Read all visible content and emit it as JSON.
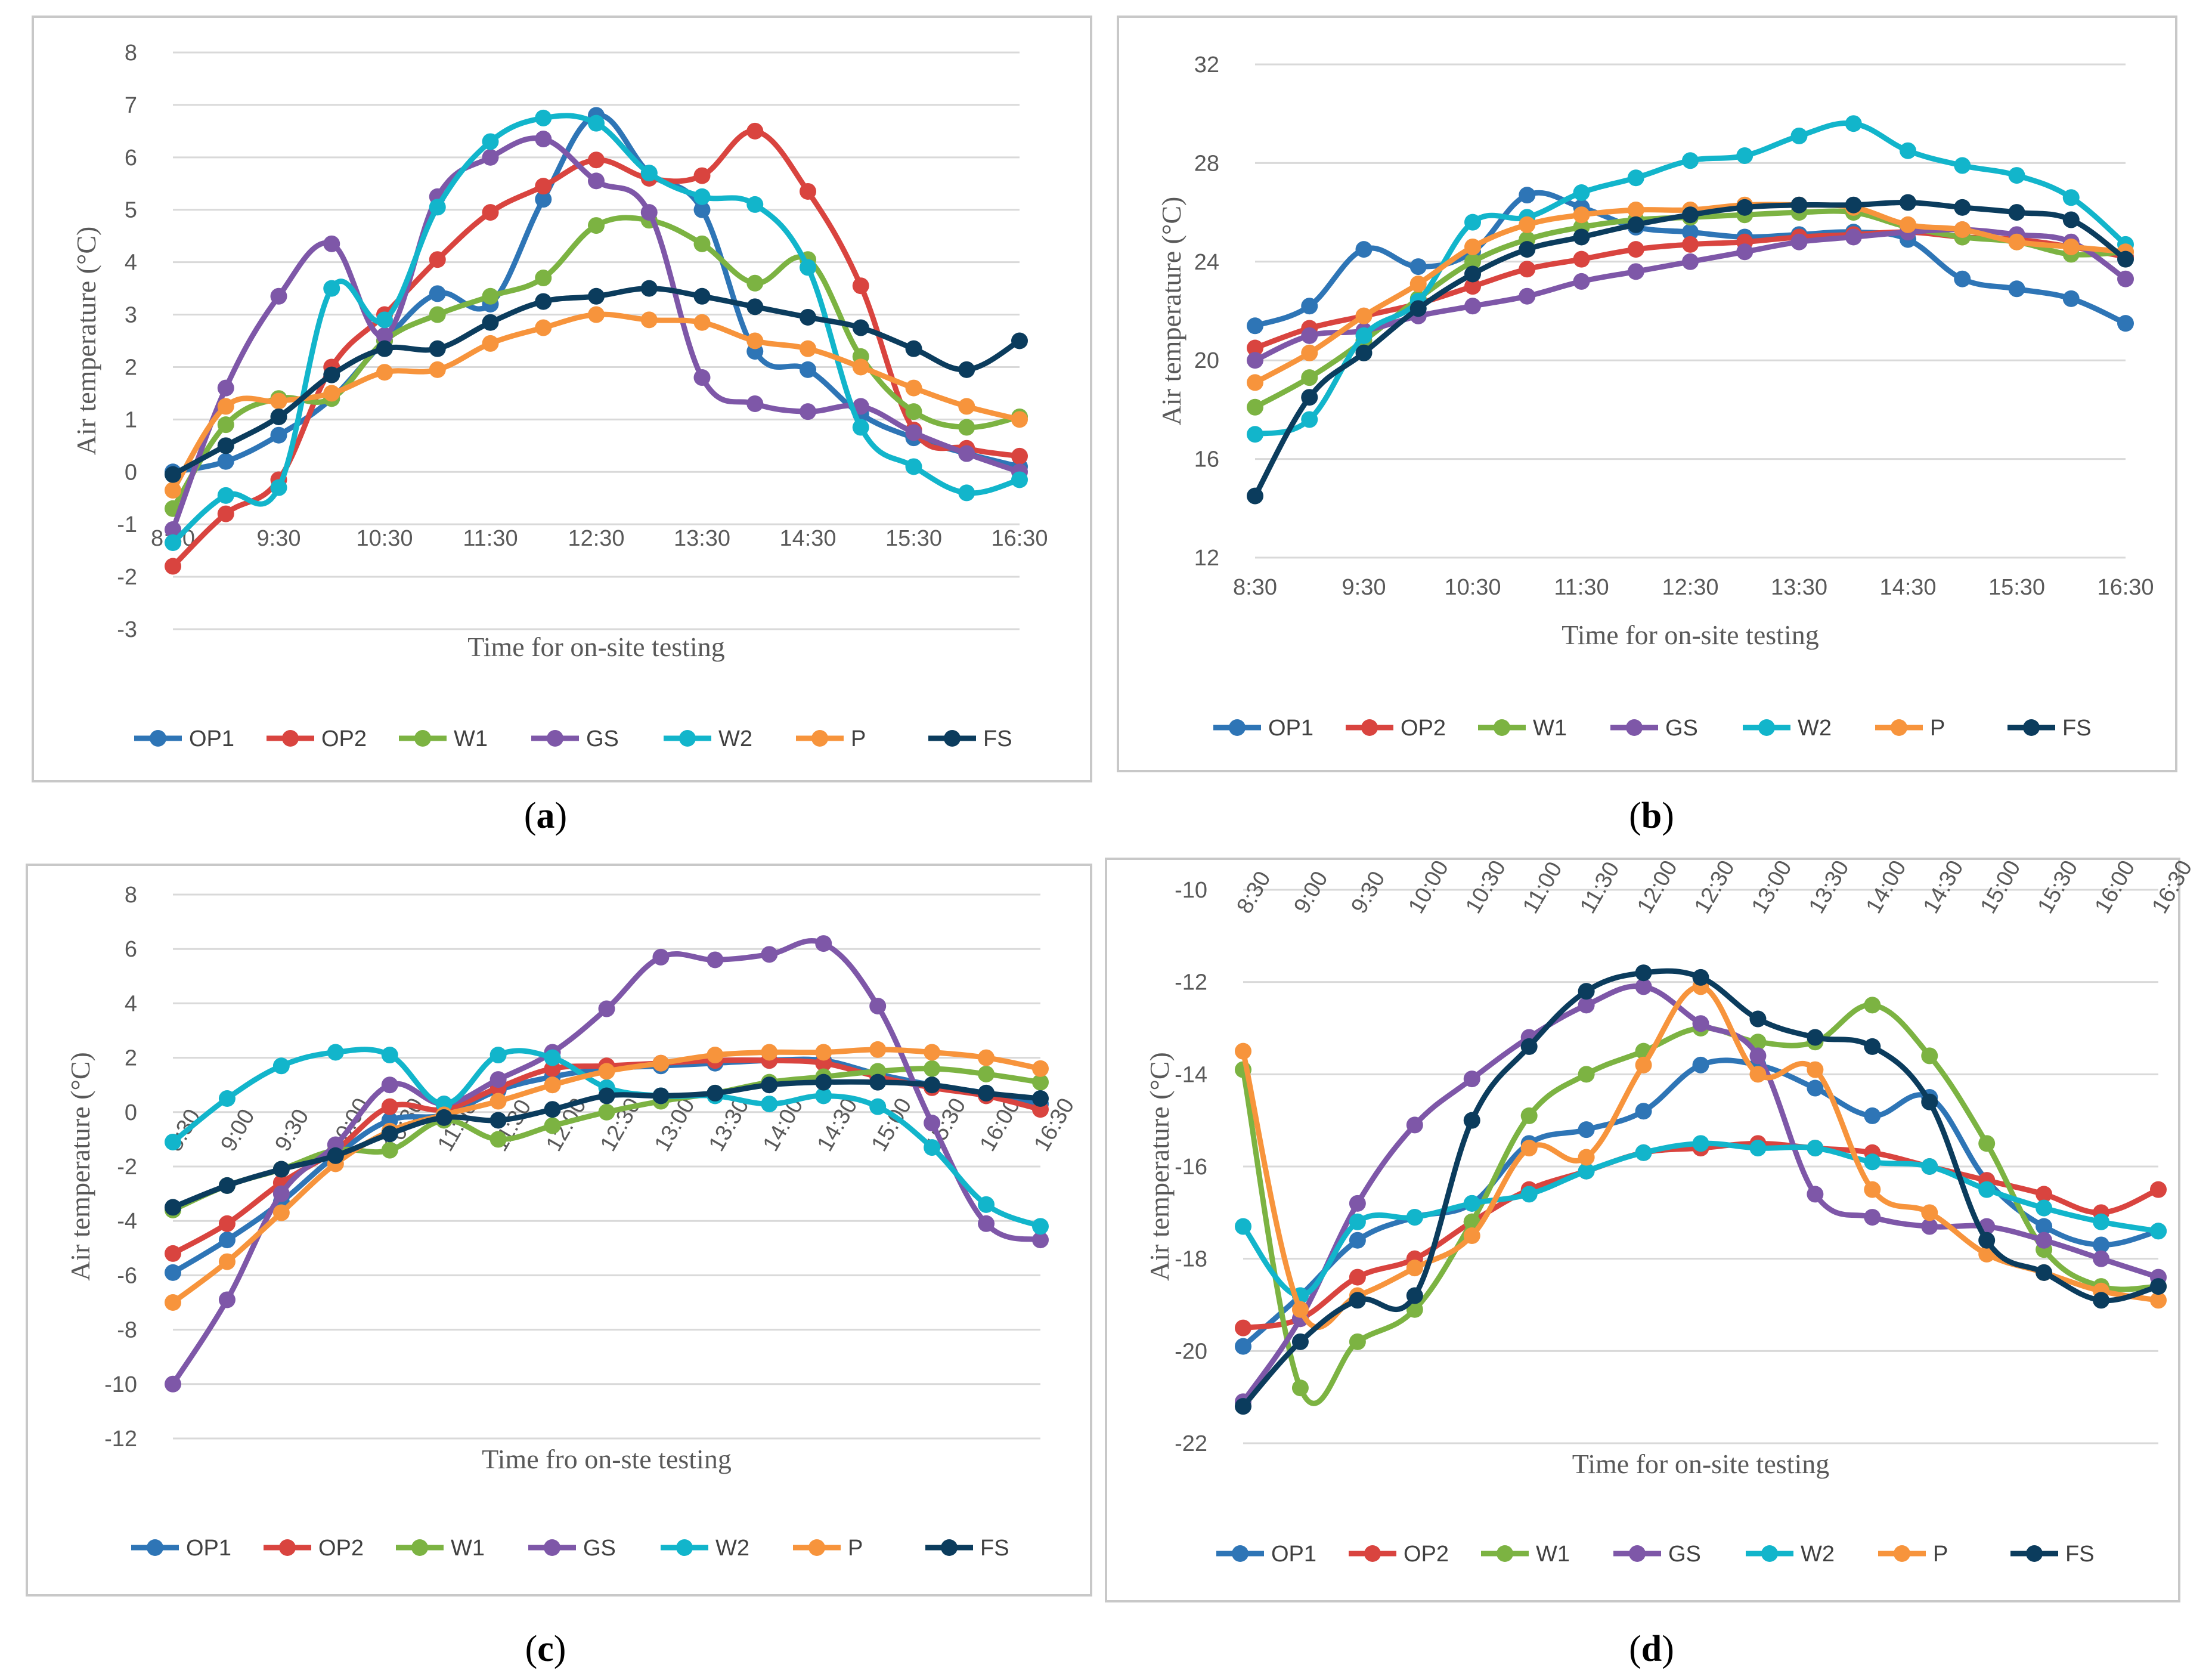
{
  "colors": {
    "OP1": "#2E75B6",
    "OP2": "#D9443F",
    "W1": "#7CB342",
    "GS": "#7E57A8",
    "W2": "#12B5CB",
    "P": "#F7943C",
    "FS": "#0B3C5D",
    "grid": "#d9d9d9",
    "frame": "#c8c8c8"
  },
  "legend": [
    "OP1",
    "OP2",
    "W1",
    "GS",
    "W2",
    "P",
    "FS"
  ],
  "chart_data": [
    {
      "id": "a",
      "type": "line",
      "caption": "(a)",
      "caption_letter": "a",
      "ylabel": "Air temperature (°C)",
      "xlabel": "Time for on-site testing",
      "ylim": [
        -3,
        8
      ],
      "yticks": [
        "-3",
        "-2",
        "-1",
        "0",
        "1",
        "2",
        "3",
        "4",
        "5",
        "6",
        "7",
        "8"
      ],
      "x_count": 17,
      "x_tick_labels": [
        "8:30",
        "9:30",
        "10:30",
        "11:30",
        "12:30",
        "13:30",
        "14:30",
        "15:30",
        "16:30"
      ],
      "x_tick_indices": [
        0,
        2,
        4,
        6,
        8,
        10,
        12,
        14,
        16
      ],
      "x_label_value": -0.7,
      "x_label_rotated": false,
      "series": [
        {
          "name": "OP1",
          "values": [
            0,
            0.2,
            0.7,
            1.4,
            2.5,
            3.4,
            3.2,
            5.2,
            6.8,
            5.7,
            5.0,
            2.3,
            1.95,
            1.1,
            0.65,
            0.35,
            0.1
          ]
        },
        {
          "name": "OP2",
          "values": [
            -1.8,
            -0.8,
            -0.15,
            2.0,
            3.0,
            4.05,
            4.95,
            5.45,
            5.95,
            5.6,
            5.65,
            6.5,
            5.35,
            3.55,
            0.8,
            0.45,
            0.3
          ]
        },
        {
          "name": "W1",
          "values": [
            -0.7,
            0.9,
            1.4,
            1.4,
            2.5,
            3.0,
            3.35,
            3.7,
            4.7,
            4.8,
            4.35,
            3.6,
            4.05,
            2.2,
            1.15,
            0.85,
            1.05
          ]
        },
        {
          "name": "GS",
          "values": [
            -1.1,
            1.6,
            3.35,
            4.35,
            2.6,
            5.25,
            6.0,
            6.35,
            5.55,
            4.95,
            1.8,
            1.3,
            1.15,
            1.25,
            0.75,
            0.35,
            0.0
          ]
        },
        {
          "name": "W2",
          "values": [
            -1.35,
            -0.45,
            -0.3,
            3.5,
            2.9,
            5.05,
            6.3,
            6.75,
            6.65,
            5.7,
            5.25,
            5.1,
            3.9,
            0.85,
            0.1,
            -0.4,
            -0.15
          ]
        },
        {
          "name": "P",
          "values": [
            -0.35,
            1.25,
            1.35,
            1.5,
            1.9,
            1.95,
            2.45,
            2.75,
            3.0,
            2.9,
            2.85,
            2.5,
            2.35,
            2.0,
            1.6,
            1.25,
            1.0
          ]
        },
        {
          "name": "FS",
          "values": [
            -0.05,
            0.5,
            1.05,
            1.85,
            2.35,
            2.35,
            2.85,
            3.25,
            3.35,
            3.5,
            3.35,
            3.15,
            2.95,
            2.75,
            2.35,
            1.95,
            2.5
          ]
        }
      ]
    },
    {
      "id": "b",
      "type": "line",
      "caption": "(b)",
      "caption_letter": "b",
      "ylabel": "Air temperature (°C)",
      "xlabel": "Time for on-site testing",
      "ylim": [
        12,
        32
      ],
      "yticks": [
        "12",
        "16",
        "20",
        "24",
        "28",
        "32"
      ],
      "x_count": 17,
      "x_tick_labels": [
        "8:30",
        "9:30",
        "10:30",
        "11:30",
        "12:30",
        "13:30",
        "14:30",
        "15:30",
        "16:30"
      ],
      "x_tick_indices": [
        0,
        2,
        4,
        6,
        8,
        10,
        12,
        14,
        16
      ],
      "x_label_value": 12,
      "x_label_rotated": false,
      "series": [
        {
          "name": "OP1",
          "values": [
            21.4,
            22.2,
            24.5,
            23.8,
            24.4,
            26.7,
            26.2,
            25.4,
            25.2,
            25.0,
            25.1,
            25.2,
            24.9,
            23.3,
            22.9,
            22.5,
            21.5
          ]
        },
        {
          "name": "OP2",
          "values": [
            20.5,
            21.3,
            21.8,
            22.3,
            23.0,
            23.7,
            24.1,
            24.5,
            24.7,
            24.8,
            25.0,
            25.1,
            25.2,
            25.0,
            24.9,
            24.6,
            24.2
          ]
        },
        {
          "name": "W1",
          "values": [
            18.1,
            19.3,
            20.8,
            22.5,
            24.0,
            24.9,
            25.4,
            25.7,
            25.8,
            25.9,
            26.0,
            26.0,
            25.4,
            25.0,
            24.8,
            24.3,
            24.4
          ]
        },
        {
          "name": "GS",
          "values": [
            20.0,
            21.0,
            21.2,
            21.8,
            22.2,
            22.6,
            23.2,
            23.6,
            24.0,
            24.4,
            24.8,
            25.0,
            25.2,
            25.3,
            25.1,
            24.8,
            23.3
          ]
        },
        {
          "name": "W2",
          "values": [
            17.0,
            17.6,
            21.0,
            22.4,
            25.6,
            25.8,
            26.8,
            27.4,
            28.1,
            28.3,
            29.1,
            29.6,
            28.5,
            27.9,
            27.5,
            26.6,
            24.7
          ]
        },
        {
          "name": "P",
          "values": [
            19.1,
            20.3,
            21.8,
            23.1,
            24.6,
            25.5,
            25.9,
            26.1,
            26.1,
            26.3,
            26.3,
            26.2,
            25.5,
            25.3,
            24.8,
            24.6,
            24.4
          ]
        },
        {
          "name": "FS",
          "values": [
            14.5,
            18.5,
            20.3,
            22.1,
            23.5,
            24.5,
            25.0,
            25.5,
            25.9,
            26.2,
            26.3,
            26.3,
            26.4,
            26.2,
            26.0,
            25.7,
            24.1
          ]
        }
      ]
    },
    {
      "id": "c",
      "type": "line",
      "caption": "(c)",
      "caption_letter": "c",
      "ylabel": "Air temperature (°C)",
      "xlabel": "Time fro on-ste testing",
      "ylim": [
        -12,
        8
      ],
      "yticks": [
        "-12",
        "-10",
        "-8",
        "-6",
        "-4",
        "-2",
        "0",
        "2",
        "4",
        "6",
        "8"
      ],
      "x_count": 17,
      "x_tick_labels": [
        "8:30",
        "9:00",
        "9:30",
        "10:00",
        "10:30",
        "11:00",
        "11:30",
        "12:00",
        "12:30",
        "13:00",
        "13:30",
        "14:00",
        "14:30",
        "15:00",
        "15:30",
        "16:00",
        "16:30"
      ],
      "x_tick_indices": [
        0,
        1,
        2,
        3,
        4,
        5,
        6,
        7,
        8,
        9,
        10,
        11,
        12,
        13,
        14,
        15,
        16
      ],
      "x_label_value": -1.5,
      "x_label_rotated": true,
      "series": [
        {
          "name": "OP1",
          "values": [
            -5.9,
            -4.7,
            -3.3,
            -1.6,
            -0.3,
            -0.1,
            0.8,
            1.3,
            1.6,
            1.7,
            1.8,
            1.9,
            1.9,
            1.4,
            1.0,
            0.7,
            0.3
          ]
        },
        {
          "name": "OP2",
          "values": [
            -5.2,
            -4.1,
            -2.6,
            -1.4,
            0.2,
            0.1,
            0.9,
            1.6,
            1.7,
            1.8,
            1.9,
            1.9,
            1.8,
            1.3,
            0.9,
            0.6,
            0.1
          ]
        },
        {
          "name": "W1",
          "values": [
            -3.6,
            -2.7,
            -2.1,
            -1.4,
            -1.4,
            -0.3,
            -1.0,
            -0.5,
            0.0,
            0.4,
            0.7,
            1.1,
            1.3,
            1.5,
            1.6,
            1.4,
            1.1
          ]
        },
        {
          "name": "GS",
          "values": [
            -10.0,
            -6.9,
            -3.0,
            -1.2,
            1.0,
            0.3,
            1.2,
            2.2,
            3.8,
            5.7,
            5.6,
            5.8,
            6.2,
            3.9,
            -0.4,
            -4.1,
            -4.7
          ]
        },
        {
          "name": "W2",
          "values": [
            -1.1,
            0.5,
            1.7,
            2.2,
            2.1,
            0.3,
            2.1,
            2.0,
            0.9,
            0.6,
            0.6,
            0.3,
            0.6,
            0.2,
            -1.3,
            -3.4,
            -4.2
          ]
        },
        {
          "name": "P",
          "values": [
            -7.0,
            -5.5,
            -3.7,
            -1.9,
            -0.7,
            -0.1,
            0.4,
            1.0,
            1.5,
            1.8,
            2.1,
            2.2,
            2.2,
            2.3,
            2.2,
            2.0,
            1.6
          ]
        },
        {
          "name": "FS",
          "values": [
            -3.5,
            -2.7,
            -2.1,
            -1.6,
            -0.8,
            -0.2,
            -0.3,
            0.1,
            0.6,
            0.6,
            0.7,
            1.0,
            1.1,
            1.1,
            1.0,
            0.7,
            0.5
          ]
        }
      ]
    },
    {
      "id": "d",
      "type": "line",
      "caption": "(d)",
      "caption_letter": "d",
      "ylabel": "Air temperature (°C)",
      "xlabel": "Time for on-site testing",
      "ylim": [
        -22,
        -10
      ],
      "yticks": [
        "-22",
        "-20",
        "-18",
        "-16",
        "-14",
        "-12",
        "-10"
      ],
      "x_count": 17,
      "x_tick_labels": [
        "8:30",
        "9:00",
        "9:30",
        "10:00",
        "10:30",
        "11:00",
        "11:30",
        "12:00",
        "12:30",
        "13:00",
        "13:30",
        "14:00",
        "14:30",
        "15:00",
        "15:30",
        "16:00",
        "16:30"
      ],
      "x_tick_indices": [
        0,
        1,
        2,
        3,
        4,
        5,
        6,
        7,
        8,
        9,
        10,
        11,
        12,
        13,
        14,
        15,
        16
      ],
      "x_label_value": -10.55,
      "x_label_rotated": true,
      "series": [
        {
          "name": "OP1",
          "values": [
            -19.9,
            -18.8,
            -17.6,
            -17.1,
            -16.8,
            -15.5,
            -15.2,
            -14.8,
            -13.8,
            -13.8,
            -14.3,
            -14.9,
            -14.5,
            -16.3,
            -17.3,
            -17.7,
            -17.4
          ]
        },
        {
          "name": "OP2",
          "values": [
            -19.5,
            -19.3,
            -18.4,
            -18.0,
            -17.2,
            -16.5,
            -16.1,
            -15.7,
            -15.6,
            -15.5,
            -15.6,
            -15.7,
            -16.0,
            -16.3,
            -16.6,
            -17.0,
            -16.5
          ]
        },
        {
          "name": "W1",
          "values": [
            -13.9,
            -20.8,
            -19.8,
            -19.1,
            -17.2,
            -14.9,
            -14.0,
            -13.5,
            -13.0,
            -13.3,
            -13.3,
            -12.5,
            -13.6,
            -15.5,
            -17.8,
            -18.6,
            -18.6
          ]
        },
        {
          "name": "GS",
          "values": [
            -21.1,
            -19.3,
            -16.8,
            -15.1,
            -14.1,
            -13.2,
            -12.5,
            -12.1,
            -12.9,
            -13.6,
            -16.6,
            -17.1,
            -17.3,
            -17.3,
            -17.6,
            -18.0,
            -18.4
          ]
        },
        {
          "name": "W2",
          "values": [
            -17.3,
            -18.8,
            -17.2,
            -17.1,
            -16.8,
            -16.6,
            -16.1,
            -15.7,
            -15.5,
            -15.6,
            -15.6,
            -15.9,
            -16.0,
            -16.5,
            -16.9,
            -17.2,
            -17.4
          ]
        },
        {
          "name": "P",
          "values": [
            -13.5,
            -19.1,
            -18.8,
            -18.2,
            -17.5,
            -15.6,
            -15.8,
            -13.8,
            -12.1,
            -14.0,
            -13.9,
            -16.5,
            -17.0,
            -17.9,
            -18.3,
            -18.7,
            -18.9
          ]
        },
        {
          "name": "FS",
          "values": [
            -21.2,
            -19.8,
            -18.9,
            -18.8,
            -15.0,
            -13.4,
            -12.2,
            -11.8,
            -11.9,
            -12.8,
            -13.2,
            -13.4,
            -14.6,
            -17.6,
            -18.3,
            -18.9,
            -18.6
          ]
        }
      ]
    }
  ]
}
